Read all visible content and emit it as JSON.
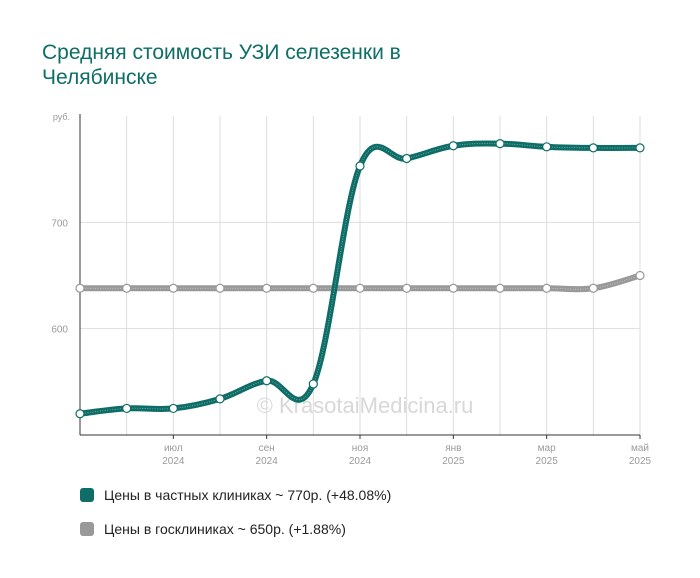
{
  "title": "Средняя стоимость УЗИ селезенки в Челябинске",
  "watermark": "© KrasotaiMedicina.ru",
  "colors": {
    "private": "#0e6e67",
    "public": "#999999",
    "grid": "#dddddd",
    "axis": "#333333"
  },
  "legend": [
    {
      "label": "Цены в частных клиниках ~ 770р. (+48.08%)",
      "color": "#0e6e67"
    },
    {
      "label": "Цены в госклиниках ~ 650р. (+1.88%)",
      "color": "#999999"
    }
  ],
  "chart_data": {
    "type": "line",
    "title": "Средняя стоимость УЗИ селезенки в Челябинске",
    "y_unit": "руб.",
    "ylim": [
      500,
      800
    ],
    "y_ticks": [
      600,
      700
    ],
    "grid": true,
    "legend_position": "bottom",
    "x_tick_labels": [
      {
        "month": "июл",
        "year": "2024"
      },
      {
        "month": "сен",
        "year": "2024"
      },
      {
        "month": "ноя",
        "year": "2024"
      },
      {
        "month": "янв",
        "year": "2025"
      },
      {
        "month": "мар",
        "year": "2025"
      },
      {
        "month": "май",
        "year": "2025"
      }
    ],
    "x": [
      "2024-05",
      "2024-06",
      "2024-07",
      "2024-08",
      "2024-09",
      "2024-10",
      "2024-11",
      "2024-12",
      "2025-01",
      "2025-02",
      "2025-03",
      "2025-04",
      "2025-05"
    ],
    "series": [
      {
        "name": "Цены в частных клиниках ~ 770р. (+48.08%)",
        "color": "#0e6e67",
        "values": [
          520,
          525,
          525,
          534,
          551,
          548,
          753,
          760,
          772,
          774,
          771,
          770,
          770
        ]
      },
      {
        "name": "Цены в госклиниках ~ 650р. (+1.88%)",
        "color": "#999999",
        "values": [
          638,
          638,
          638,
          638,
          638,
          638,
          638,
          638,
          638,
          638,
          638,
          638,
          650
        ]
      }
    ]
  }
}
